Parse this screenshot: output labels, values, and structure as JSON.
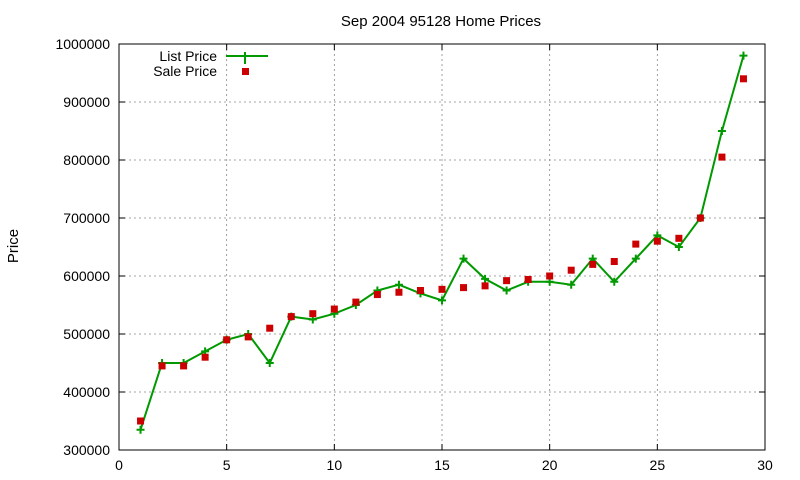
{
  "chart_data": {
    "type": "line",
    "title": "Sep 2004 95128 Home Prices",
    "xlabel": "",
    "ylabel": "Price",
    "xlim": [
      0,
      30
    ],
    "ylim": [
      300000,
      1000000
    ],
    "x_ticks": [
      0,
      5,
      10,
      15,
      20,
      25,
      30
    ],
    "y_ticks": [
      300000,
      400000,
      500000,
      600000,
      700000,
      800000,
      900000,
      1000000
    ],
    "grid": true,
    "legend_position": "top-left",
    "series": [
      {
        "name": "List Price",
        "style": "line-with-plus-markers",
        "color": "#009900",
        "x": [
          1,
          2,
          3,
          4,
          5,
          6,
          7,
          8,
          9,
          10,
          11,
          12,
          13,
          14,
          15,
          16,
          17,
          18,
          19,
          20,
          21,
          22,
          23,
          24,
          25,
          26,
          27,
          28,
          29
        ],
        "values": [
          335000,
          450000,
          450000,
          470000,
          490000,
          500000,
          450000,
          530000,
          525000,
          535000,
          550000,
          575000,
          585000,
          570000,
          558000,
          630000,
          595000,
          575000,
          590000,
          590000,
          585000,
          630000,
          590000,
          630000,
          670000,
          650000,
          700000,
          850000,
          980000
        ]
      },
      {
        "name": "Sale Price",
        "style": "square-markers",
        "color": "#cc0000",
        "x": [
          1,
          2,
          3,
          4,
          5,
          6,
          7,
          8,
          9,
          10,
          11,
          12,
          13,
          14,
          15,
          16,
          17,
          18,
          19,
          20,
          21,
          22,
          23,
          24,
          25,
          26,
          27,
          28,
          29
        ],
        "values": [
          350000,
          445000,
          445000,
          460000,
          490000,
          495000,
          510000,
          530000,
          535000,
          543000,
          555000,
          568000,
          572000,
          575000,
          577000,
          580000,
          583000,
          592000,
          594000,
          600000,
          610000,
          620000,
          625000,
          655000,
          660000,
          665000,
          700000,
          805000,
          940000
        ]
      }
    ]
  }
}
